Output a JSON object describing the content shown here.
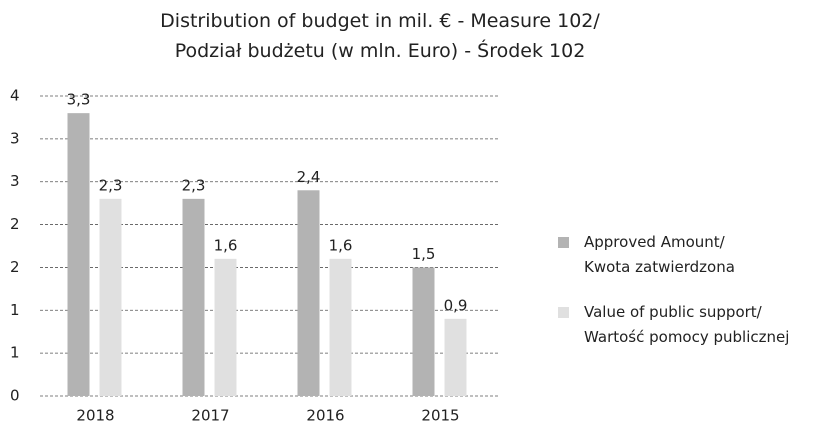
{
  "chart_data": {
    "type": "bar",
    "title": "Distribution of budget in mil. € - Measure 102/\nPodział budżetu (w mln. Euro) - Środek 102",
    "categories": [
      "2018",
      "2017",
      "2016",
      "2015"
    ],
    "series": [
      {
        "name": "Approved Amount/\nKwota zatwierdzona",
        "color": "#b3b3b3",
        "values": [
          3.3,
          2.3,
          2.4,
          1.5
        ],
        "value_labels": [
          "3,3",
          "2,3",
          "2,4",
          "1,5"
        ]
      },
      {
        "name": "Value of public support/\nWartość pomocy publicznej",
        "color": "#e0e0e0",
        "values": [
          2.3,
          1.6,
          1.6,
          0.9
        ],
        "value_labels": [
          "2,3",
          "1,6",
          "1,6",
          "0,9"
        ]
      }
    ],
    "ylim": [
      0,
      3.5
    ],
    "yticks": [
      0,
      {
        "value": 0.5,
        "label": "1"
      },
      1,
      {
        "value": 1.5,
        "label": "2"
      },
      2,
      {
        "value": 2.5,
        "label": "3"
      },
      3,
      {
        "value": 3.5,
        "label": "4"
      }
    ],
    "grid": true,
    "legend": "right"
  }
}
